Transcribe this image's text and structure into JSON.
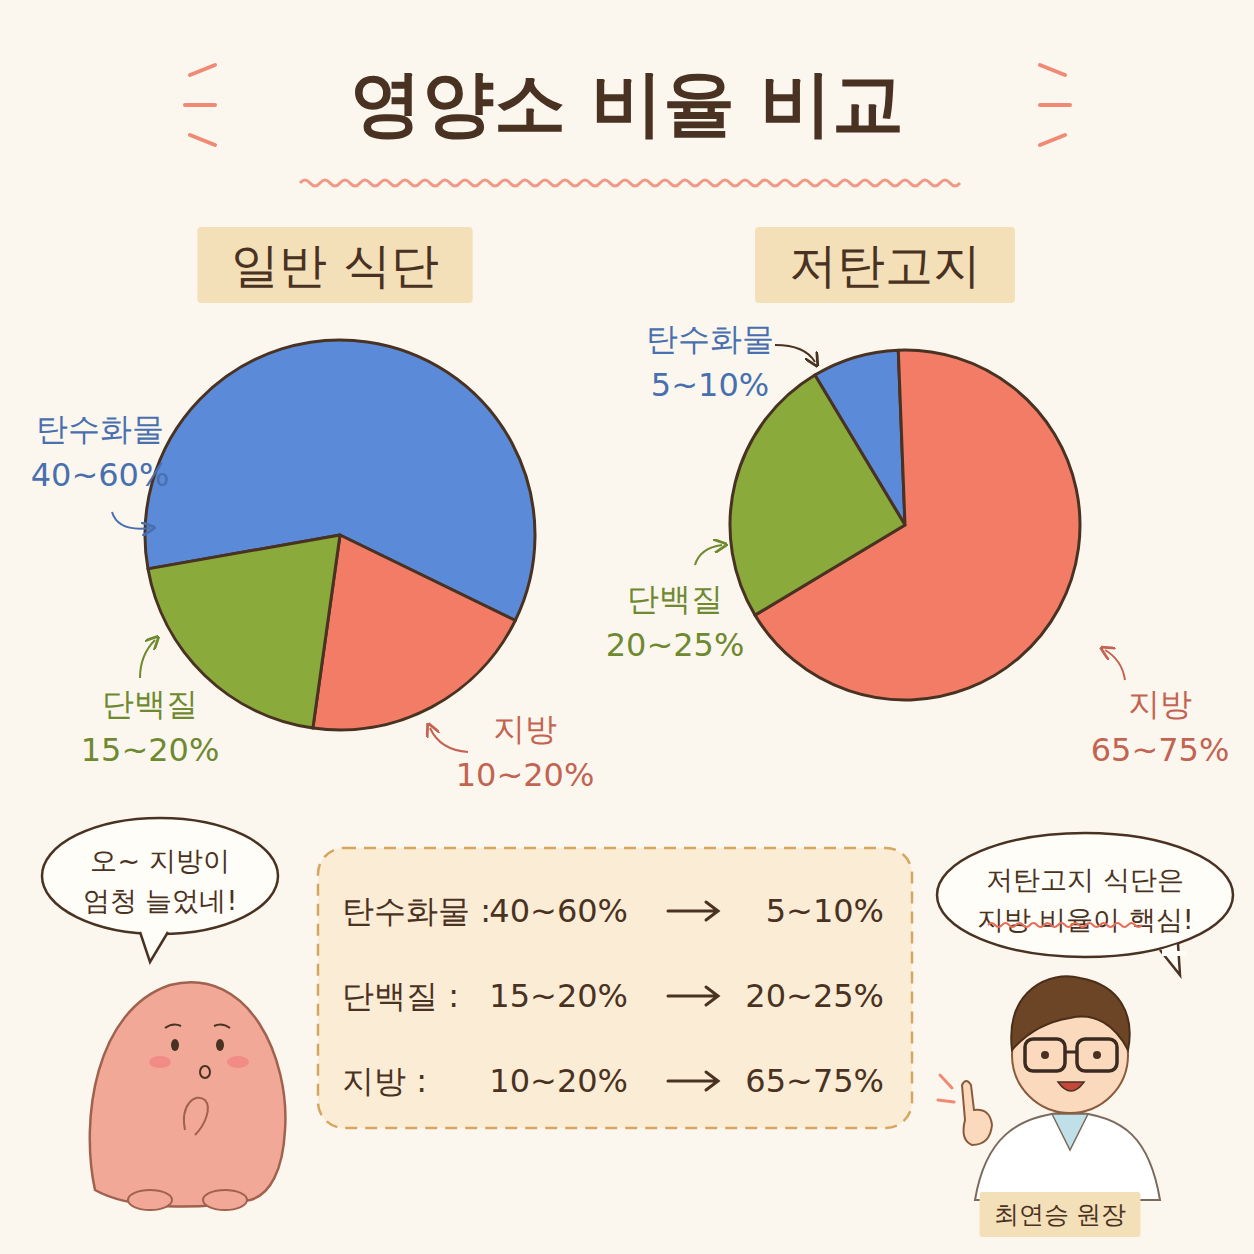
{
  "title": "영양소 비율 비교",
  "chart_data": [
    {
      "type": "pie",
      "title": "일반 식단",
      "categories": [
        "탄수화물",
        "지방",
        "단백질"
      ],
      "values": [
        60,
        20,
        20
      ],
      "value_labels": [
        "40~60%",
        "10~20%",
        "15~20%"
      ],
      "colors": [
        "#5b8bd8",
        "#f27c65",
        "#8aaa3c"
      ],
      "data_labels": true
    },
    {
      "type": "pie",
      "title": "저탄고지",
      "categories": [
        "탄수화물",
        "지방",
        "단백질"
      ],
      "values": [
        8,
        67,
        25
      ],
      "value_labels": [
        "5~10%",
        "65~75%",
        "20~25%"
      ],
      "colors": [
        "#5b8bd8",
        "#f27c65",
        "#8aaa3c"
      ],
      "data_labels": true
    }
  ],
  "comparison": {
    "rows": [
      [
        "탄수화물 :",
        "40~60%",
        "5~10%"
      ],
      [
        "단백질 :",
        "15~20%",
        "20~25%"
      ],
      [
        "지방 :",
        "10~20%",
        "65~75%"
      ]
    ]
  },
  "speech": [
    {
      "lines": [
        "오~ 지방이",
        "엄청 늘었네!"
      ]
    },
    {
      "lines": [
        "저탄고지 식단은",
        "지방 비율이 핵심!"
      ]
    }
  ],
  "caption": "최연승 원장"
}
